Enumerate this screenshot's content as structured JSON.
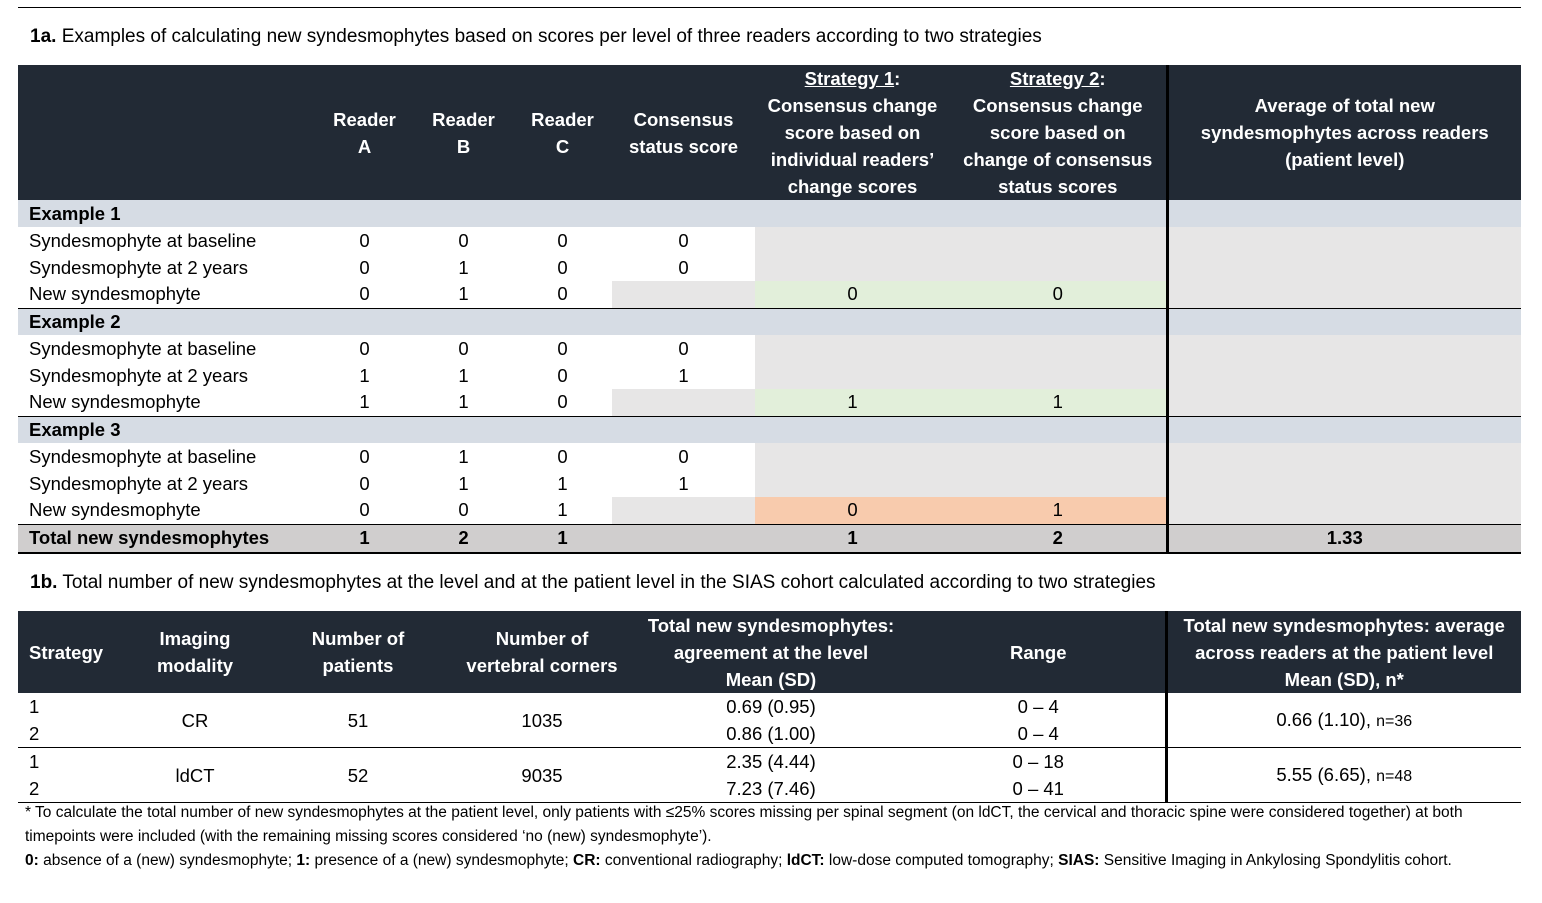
{
  "caption_1a": {
    "label": "1a.",
    "text": "Examples of calculating new syndesmophytes based on scores per level of three readers according to two strategies"
  },
  "t1a_header": {
    "reader_a": [
      "Reader",
      "A"
    ],
    "reader_b": [
      "Reader",
      "B"
    ],
    "reader_c": [
      "Reader",
      "C"
    ],
    "consensus": [
      "Consensus",
      "status score"
    ],
    "strategy1_title": "Strategy 1",
    "strategy1_lines": [
      "Consensus change",
      "score based on",
      "individual readers’",
      "change scores"
    ],
    "strategy2_title": "Strategy 2",
    "strategy2_lines": [
      "Consensus change",
      "score based on",
      "change of consensus",
      "status scores"
    ],
    "average": [
      "Average of total new",
      "syndesmophytes across readers",
      "(patient level)"
    ]
  },
  "examples": [
    {
      "title": "Example 1",
      "baseline": {
        "label": "Syndesmophyte at baseline",
        "a": "0",
        "b": "0",
        "c": "0",
        "cons": "0"
      },
      "two_years": {
        "label": "Syndesmophyte at 2 years",
        "a": "0",
        "b": "1",
        "c": "0",
        "cons": "0"
      },
      "new": {
        "label": "New syndesmophyte",
        "a": "0",
        "b": "1",
        "c": "0",
        "s1": "0",
        "s2": "0"
      }
    },
    {
      "title": "Example 2",
      "baseline": {
        "label": "Syndesmophyte at baseline",
        "a": "0",
        "b": "0",
        "c": "0",
        "cons": "0"
      },
      "two_years": {
        "label": "Syndesmophyte at 2 years",
        "a": "1",
        "b": "1",
        "c": "0",
        "cons": "1"
      },
      "new": {
        "label": "New syndesmophyte",
        "a": "1",
        "b": "1",
        "c": "0",
        "s1": "1",
        "s2": "1"
      }
    },
    {
      "title": "Example 3",
      "baseline": {
        "label": "Syndesmophyte at baseline",
        "a": "0",
        "b": "1",
        "c": "0",
        "cons": "0"
      },
      "two_years": {
        "label": "Syndesmophyte at 2 years",
        "a": "0",
        "b": "1",
        "c": "1",
        "cons": "1"
      },
      "new": {
        "label": "New syndesmophyte",
        "a": "0",
        "b": "0",
        "c": "1",
        "s1": "0",
        "s2": "1"
      }
    }
  ],
  "total_row": {
    "label": "Total new syndesmophytes",
    "a": "1",
    "b": "2",
    "c": "1",
    "s1": "1",
    "s2": "2",
    "avg": "1.33"
  },
  "caption_1b": {
    "label": "1b.",
    "text": "Total number of new syndesmophytes at the level and at the patient level in the SIAS cohort calculated according to two strategies"
  },
  "t1b_header": {
    "strategy": "Strategy",
    "modality": [
      "Imaging",
      "modality"
    ],
    "patients": [
      "Number of",
      "patients"
    ],
    "corners": [
      "Number of",
      "vertebral corners"
    ],
    "level": [
      "Total new syndesmophytes:",
      "agreement at the level",
      "Mean (SD)"
    ],
    "range": "Range",
    "patient_level": [
      "Total new syndesmophytes: average",
      "across readers at the patient level",
      "Mean (SD), n*"
    ]
  },
  "t1b_groups": [
    {
      "modality": "CR",
      "patients": "51",
      "corners": "1035",
      "avg": "0.66 (1.10),",
      "n": "n=36",
      "rows": [
        {
          "strategy": "1",
          "mean_sd": "0.69 (0.95)",
          "range": "0 – 4"
        },
        {
          "strategy": "2",
          "mean_sd": "0.86 (1.00)",
          "range": "0 – 4"
        }
      ]
    },
    {
      "modality": "ldCT",
      "patients": "52",
      "corners": "9035",
      "avg": "5.55 (6.65),",
      "n": "n=48",
      "rows": [
        {
          "strategy": "1",
          "mean_sd": "2.35 (4.44)",
          "range": "0 – 18"
        },
        {
          "strategy": "2",
          "mean_sd": "7.23 (7.46)",
          "range": "0 – 41"
        }
      ]
    }
  ],
  "footnote1": "* To calculate the total number of new syndesmophytes at the patient level, only patients with ≤25% scores missing per spinal segment (on ldCT, the cervical and thoracic spine were considered together) at both timepoints were included (with the remaining missing scores considered ‘no (new) syndesmophyte’).",
  "footnote2": [
    {
      "term": "0:",
      "def": "absence of a (new) syndesmophyte;"
    },
    {
      "term": "1:",
      "def": "presence of a (new) syndesmophyte;"
    },
    {
      "term": "CR:",
      "def": "conventional radiography;"
    },
    {
      "term": "ldCT:",
      "def": "low-dose computed tomography;"
    },
    {
      "term": "SIAS:",
      "def": "Sensitive Imaging in Ankylosing Spondylitis cohort."
    }
  ]
}
